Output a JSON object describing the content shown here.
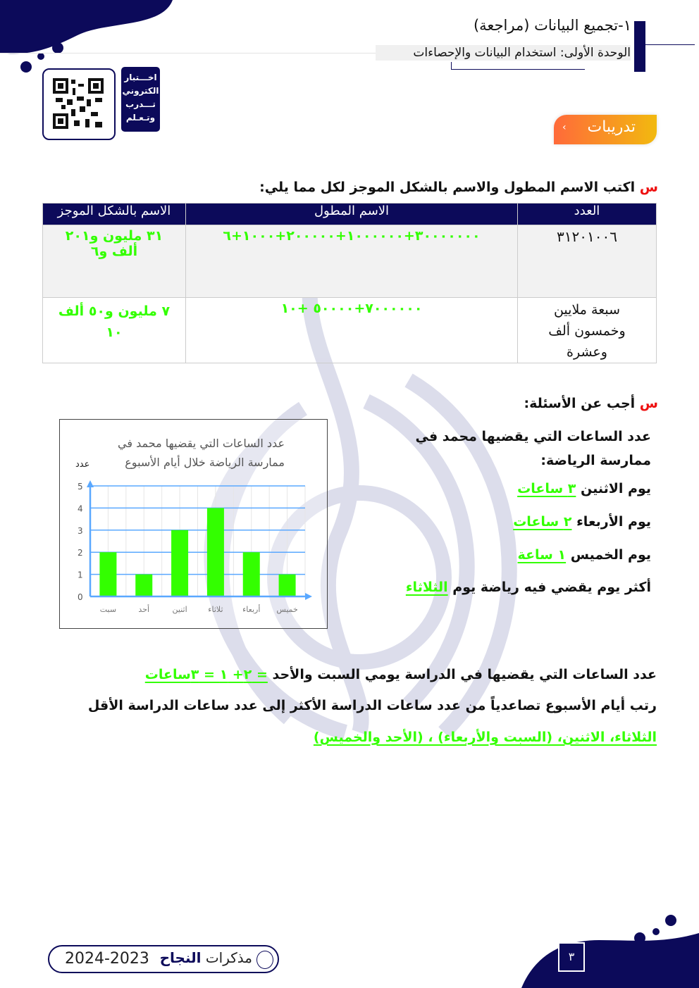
{
  "header": {
    "title": "١-تجميع البيانات (مراجعة)",
    "unit": "الوحدة الأولى: استخدام البيانات والإحصاءات",
    "badge": "تدريبات",
    "qr_label": [
      "اخـــتبار",
      "الكتروني",
      "تـــدرب",
      "وتـعـلم"
    ]
  },
  "q1": {
    "marker": "س",
    "text": "اكتب الاسم المطول والاسم بالشكل الموجز لكل مما يلي:",
    "headers": [
      "العدد",
      "الاسم المطول",
      "الاسم بالشكل الموجز"
    ],
    "rows": [
      {
        "number": "٣١٢٠١٠٠٦",
        "long": "٣٠٠٠٠٠٠٠+١٠٠٠٠٠٠+٢٠٠٠٠٠+١٠٠٠+٦",
        "short": "٣١ مليون و٢٠١ ألف و٦"
      },
      {
        "number": "سبعة ملايين وخمسون ألف وعشرة",
        "long": "٧٠٠٠٠٠٠+٥٠٠٠٠ +١٠",
        "short": "٧ مليون و٥٠ ألف ١٠"
      }
    ]
  },
  "q2": {
    "marker": "س",
    "text": "أجب عن الأسئلة:",
    "intro": "عدد الساعات التي يقضيها محمد في ممارسة الرياضة:",
    "items": [
      {
        "label": "يوم الاثنين",
        "answer": "٣ ساعات"
      },
      {
        "label": "يوم الأربعاء",
        "answer": "٢ ساعات"
      },
      {
        "label": "يوم الخميس",
        "answer": "١ ساعة"
      },
      {
        "label": "أكثر يوم يقضي فيه رياضة يوم",
        "answer": "الثلاثاء"
      }
    ],
    "study_q": "عدد الساعات التي يقضيها في الدراسة يومي السبت والأحد",
    "study_a": "= ٢+ ١ = ٣ساعات",
    "order_q": "رتب أيام الأسبوع تصاعدياً من عدد ساعات الدراسة الأكثر إلى عدد ساعات الدراسة الأقل",
    "order_a": "الثلاثاء، الاثنين، (السبت والأربعاء) ، (الأحد والخميس)"
  },
  "chart_data": {
    "type": "bar",
    "title": "عدد الساعات التي يقضيها محمد في ممارسة الرياضة خلال أيام الأسبوع",
    "title_lines": [
      "عدد الساعات التي يقضيها محمد في",
      "ممارسة الرياضة خلال أيام الأسبوع"
    ],
    "ylabel": "عدد",
    "xlabel": "",
    "categories": [
      "سبت",
      "أحد",
      "اثنين",
      "ثلاثاء",
      "أربعاء",
      "خميس"
    ],
    "values": [
      2,
      1,
      3,
      4,
      2,
      1
    ],
    "yticks": [
      "0",
      "1",
      "2",
      "3",
      "4",
      "5"
    ],
    "ylim": [
      0,
      5
    ],
    "grid": true,
    "bar_color": "#33ff00",
    "axis_color": "#5aa8ff"
  },
  "footer": {
    "page": "٣",
    "brand_prefix": "مذكرات",
    "brand": "النجاح",
    "year": "2024-2023"
  },
  "colors": {
    "navy": "#0c0a5a",
    "green": "#33ff00",
    "red": "#ee1111",
    "badge_from": "#ff6a3a",
    "badge_to": "#f2b90f"
  }
}
